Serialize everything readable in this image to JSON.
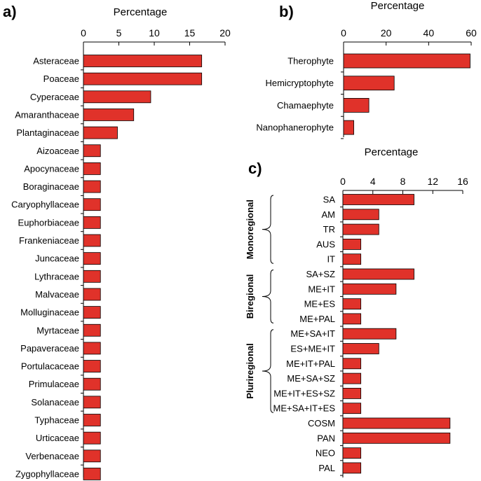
{
  "colors": {
    "bar_fill": "#e0322a",
    "bar_stroke": "#000000"
  },
  "chart_data": [
    {
      "panel": "a)",
      "type": "bar",
      "orientation": "horizontal",
      "title": "Percentage",
      "xlim": [
        0,
        20
      ],
      "ticks": [
        0,
        5,
        10,
        15,
        20
      ],
      "categories": [
        "Asteraceae",
        "Poaceae",
        "Cyperaceae",
        "Amaranthaceae",
        "Plantaginaceae",
        "Aizoaceae",
        "Apocynaceae",
        "Boraginaceae",
        "Caryophyllaceae",
        "Euphorbiaceae",
        "Frankeniaceae",
        "Juncaceae",
        "Lythraceae",
        "Malvaceae",
        "Molluginaceae",
        "Myrtaceae",
        "Papaveraceae",
        "Portulacaceae",
        "Primulaceae",
        "Solanaceae",
        "Typhaceae",
        "Urticaceae",
        "Verbenaceae",
        "Zygophyllaceae"
      ],
      "values": [
        16.7,
        16.7,
        9.5,
        7.1,
        4.8,
        2.4,
        2.4,
        2.4,
        2.4,
        2.4,
        2.4,
        2.4,
        2.4,
        2.4,
        2.4,
        2.4,
        2.4,
        2.4,
        2.4,
        2.4,
        2.4,
        2.4,
        2.4,
        2.4
      ]
    },
    {
      "panel": "b)",
      "type": "bar",
      "orientation": "horizontal",
      "title": "Percentage",
      "xlim": [
        0,
        60
      ],
      "ticks": [
        0,
        20,
        40,
        60
      ],
      "categories": [
        "Therophyte",
        "Hemicryptophyte",
        "Chamaephyte",
        "Nanophanerophyte"
      ],
      "values": [
        59.5,
        23.8,
        11.9,
        4.8
      ]
    },
    {
      "panel": "c)",
      "type": "bar",
      "orientation": "horizontal",
      "title": "Percentage",
      "xlim": [
        0,
        16
      ],
      "ticks": [
        0,
        4,
        8,
        12,
        16
      ],
      "categories": [
        "SA",
        "AM",
        "TR",
        "AUS",
        "IT",
        "SA+SZ",
        "ME+IT",
        "ME+ES",
        "ME+PAL",
        "ME+SA+IT",
        "ES+ME+IT",
        "ME+IT+PAL",
        "ME+SA+SZ",
        "ME+IT+ES+SZ",
        "ME+SA+IT+ES",
        "COSM",
        "PAN",
        "NEO",
        "PAL"
      ],
      "values": [
        9.5,
        4.8,
        4.8,
        2.4,
        2.4,
        9.5,
        7.1,
        2.4,
        2.4,
        7.1,
        4.8,
        2.4,
        2.4,
        2.4,
        2.4,
        14.3,
        14.3,
        2.4,
        2.4
      ],
      "groups": [
        {
          "label": "Monoregional",
          "start": 0,
          "end": 4
        },
        {
          "label": "Biregional",
          "start": 5,
          "end": 8
        },
        {
          "label": "Pluriregional",
          "start": 9,
          "end": 14
        }
      ]
    }
  ]
}
